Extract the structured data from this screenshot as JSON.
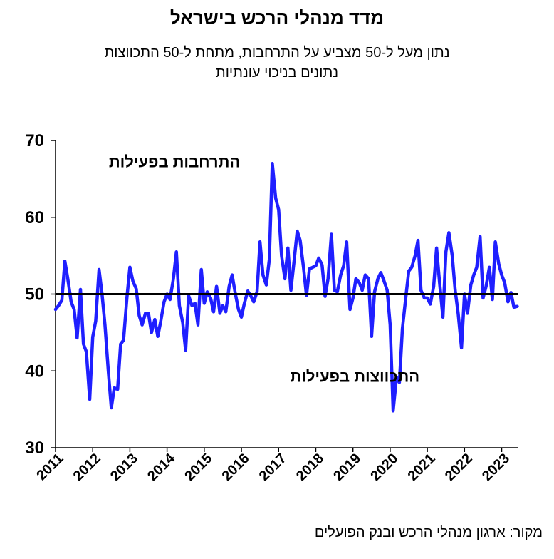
{
  "title": "מדד מנהלי הרכש בישראל",
  "subtitle_line1": "נתון מעל ל-50 מצביע על התרחבות, מתחת ל-50 התכווצות",
  "subtitle_line2": "נתונים בניכוי עונתיות",
  "source": "מקור: ארגון מנהלי הרכש ובנק הפועלים",
  "chart_data": {
    "type": "line",
    "ylim": [
      30,
      70
    ],
    "yticks": [
      "30",
      "40",
      "50",
      "60",
      "70"
    ],
    "xlim": [
      2011,
      2023.45
    ],
    "xticks": [
      "2011",
      "2012",
      "2013",
      "2014",
      "2015",
      "2016",
      "2017",
      "2018",
      "2019",
      "2020",
      "2021",
      "2022",
      "2023"
    ],
    "reference_line": 50,
    "annotations": [
      {
        "text": "התרחבות בפעילות",
        "x": 2014.2,
        "y": 66.5
      },
      {
        "text": "התכווצות בפעילות",
        "x": 2019.05,
        "y": 38.6
      }
    ],
    "series": [
      {
        "color": "#1f1fff",
        "points": [
          [
            2011.0,
            48.0
          ],
          [
            2011.08,
            48.5
          ],
          [
            2011.17,
            49.2
          ],
          [
            2011.25,
            54.3
          ],
          [
            2011.33,
            52.0
          ],
          [
            2011.42,
            49.0
          ],
          [
            2011.5,
            48.0
          ],
          [
            2011.58,
            44.3
          ],
          [
            2011.67,
            50.6
          ],
          [
            2011.75,
            43.5
          ],
          [
            2011.83,
            42.5
          ],
          [
            2011.92,
            36.3
          ],
          [
            2012.0,
            44.4
          ],
          [
            2012.08,
            46.5
          ],
          [
            2012.17,
            53.2
          ],
          [
            2012.25,
            50.0
          ],
          [
            2012.33,
            46.0
          ],
          [
            2012.42,
            40.0
          ],
          [
            2012.5,
            35.2
          ],
          [
            2012.58,
            37.8
          ],
          [
            2012.67,
            37.6
          ],
          [
            2012.75,
            43.5
          ],
          [
            2012.83,
            44.0
          ],
          [
            2012.92,
            49.5
          ],
          [
            2013.0,
            53.5
          ],
          [
            2013.08,
            51.7
          ],
          [
            2013.17,
            50.7
          ],
          [
            2013.25,
            47.2
          ],
          [
            2013.33,
            46.0
          ],
          [
            2013.42,
            47.5
          ],
          [
            2013.5,
            47.5
          ],
          [
            2013.58,
            45.0
          ],
          [
            2013.67,
            46.7
          ],
          [
            2013.75,
            44.5
          ],
          [
            2013.83,
            46.5
          ],
          [
            2013.92,
            49.0
          ],
          [
            2014.0,
            50.0
          ],
          [
            2014.08,
            49.3
          ],
          [
            2014.17,
            52.0
          ],
          [
            2014.25,
            55.5
          ],
          [
            2014.33,
            48.5
          ],
          [
            2014.42,
            46.3
          ],
          [
            2014.5,
            42.7
          ],
          [
            2014.58,
            49.8
          ],
          [
            2014.67,
            48.5
          ],
          [
            2014.75,
            48.8
          ],
          [
            2014.83,
            46.0
          ],
          [
            2014.92,
            53.2
          ],
          [
            2015.0,
            48.8
          ],
          [
            2015.08,
            50.3
          ],
          [
            2015.17,
            49.5
          ],
          [
            2015.25,
            47.7
          ],
          [
            2015.33,
            51.0
          ],
          [
            2015.42,
            47.5
          ],
          [
            2015.5,
            48.5
          ],
          [
            2015.58,
            47.7
          ],
          [
            2015.67,
            51.0
          ],
          [
            2015.75,
            52.5
          ],
          [
            2015.83,
            50.2
          ],
          [
            2015.92,
            48.0
          ],
          [
            2016.0,
            47.0
          ],
          [
            2016.08,
            48.8
          ],
          [
            2016.17,
            50.4
          ],
          [
            2016.25,
            49.8
          ],
          [
            2016.33,
            49.0
          ],
          [
            2016.42,
            50.3
          ],
          [
            2016.5,
            56.8
          ],
          [
            2016.58,
            52.5
          ],
          [
            2016.67,
            51.2
          ],
          [
            2016.75,
            54.5
          ],
          [
            2016.83,
            67.0
          ],
          [
            2016.92,
            62.5
          ],
          [
            2017.0,
            61.0
          ],
          [
            2017.08,
            55.0
          ],
          [
            2017.17,
            52.0
          ],
          [
            2017.25,
            56.0
          ],
          [
            2017.33,
            50.5
          ],
          [
            2017.42,
            54.5
          ],
          [
            2017.5,
            58.2
          ],
          [
            2017.58,
            57.0
          ],
          [
            2017.67,
            53.5
          ],
          [
            2017.75,
            49.8
          ],
          [
            2017.83,
            53.3
          ],
          [
            2017.92,
            53.5
          ],
          [
            2018.0,
            53.7
          ],
          [
            2018.08,
            54.7
          ],
          [
            2018.17,
            53.8
          ],
          [
            2018.25,
            49.7
          ],
          [
            2018.33,
            52.0
          ],
          [
            2018.42,
            57.8
          ],
          [
            2018.5,
            50.5
          ],
          [
            2018.58,
            50.3
          ],
          [
            2018.67,
            52.5
          ],
          [
            2018.75,
            53.7
          ],
          [
            2018.83,
            56.8
          ],
          [
            2018.92,
            48.0
          ],
          [
            2019.0,
            49.5
          ],
          [
            2019.08,
            52.0
          ],
          [
            2019.17,
            51.5
          ],
          [
            2019.25,
            50.5
          ],
          [
            2019.33,
            52.5
          ],
          [
            2019.42,
            52.0
          ],
          [
            2019.5,
            44.5
          ],
          [
            2019.58,
            50.3
          ],
          [
            2019.67,
            52.0
          ],
          [
            2019.75,
            52.8
          ],
          [
            2019.83,
            51.8
          ],
          [
            2019.92,
            50.5
          ],
          [
            2020.0,
            46.0
          ],
          [
            2020.08,
            34.8
          ],
          [
            2020.17,
            39.2
          ],
          [
            2020.25,
            38.5
          ],
          [
            2020.33,
            45.5
          ],
          [
            2020.42,
            49.5
          ],
          [
            2020.5,
            53.0
          ],
          [
            2020.58,
            53.5
          ],
          [
            2020.67,
            55.0
          ],
          [
            2020.75,
            57.0
          ],
          [
            2020.83,
            50.5
          ],
          [
            2020.92,
            49.5
          ],
          [
            2021.0,
            49.5
          ],
          [
            2021.08,
            48.7
          ],
          [
            2021.17,
            51.0
          ],
          [
            2021.25,
            56.0
          ],
          [
            2021.33,
            51.5
          ],
          [
            2021.42,
            47.0
          ],
          [
            2021.5,
            55.5
          ],
          [
            2021.58,
            58.0
          ],
          [
            2021.67,
            55.0
          ],
          [
            2021.75,
            50.5
          ],
          [
            2021.83,
            47.5
          ],
          [
            2021.92,
            43.0
          ],
          [
            2022.0,
            50.0
          ],
          [
            2022.08,
            47.5
          ],
          [
            2022.17,
            51.2
          ],
          [
            2022.25,
            52.5
          ],
          [
            2022.33,
            53.5
          ],
          [
            2022.42,
            57.5
          ],
          [
            2022.5,
            49.5
          ],
          [
            2022.58,
            51.0
          ],
          [
            2022.67,
            53.5
          ],
          [
            2022.75,
            49.3
          ],
          [
            2022.83,
            56.8
          ],
          [
            2022.92,
            54.0
          ],
          [
            2023.0,
            52.5
          ],
          [
            2023.08,
            51.5
          ],
          [
            2023.17,
            49.0
          ],
          [
            2023.25,
            50.2
          ],
          [
            2023.33,
            48.3
          ],
          [
            2023.42,
            48.4
          ]
        ]
      }
    ]
  }
}
